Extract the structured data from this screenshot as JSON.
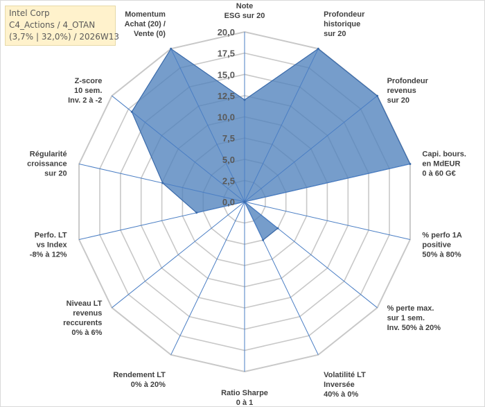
{
  "info": {
    "line1": "Intel Corp",
    "line2": "C4_Actions / 4_OTAN",
    "line3": "(3,7% | 32,0%) / 2026W13"
  },
  "chart_data": {
    "type": "radar",
    "rmax": 20,
    "ticks": [
      "0,0",
      "2,5",
      "5,0",
      "7,5",
      "10,0",
      "12,5",
      "15,0",
      "17,5",
      "20,0"
    ],
    "axes": [
      {
        "label": [
          "Note",
          "ESG sur 20"
        ],
        "value": 12.0
      },
      {
        "label": [
          "Profondeur",
          "historique",
          "sur 20"
        ],
        "value": 20.0
      },
      {
        "label": [
          "Profondeur",
          "revenus",
          "sur 20"
        ],
        "value": 20.0
      },
      {
        "label": [
          "Capi. bours.",
          "en MdEUR",
          "0 à 60 G€"
        ],
        "value": 20.0
      },
      {
        "label": [
          "% perfo 1A",
          "positive",
          "50% à 80%"
        ],
        "value": 0.0
      },
      {
        "label": [
          "% perte max.",
          "sur 1 sem.",
          "Inv. 50% à 20%"
        ],
        "value": 5.0
      },
      {
        "label": [
          "Volatilité LT",
          "Inversée",
          "40% à 0%"
        ],
        "value": 5.0
      },
      {
        "label": [
          "Ratio Sharpe",
          "0 à 1"
        ],
        "value": 0.0
      },
      {
        "label": [
          "Rendement LT",
          "0% à 20%"
        ],
        "value": 0.0
      },
      {
        "label": [
          "Niveau LT",
          "revenus",
          "reccurents",
          "0% à 6%"
        ],
        "value": 0.0
      },
      {
        "label": [
          "Perfo. LT",
          "vs Index",
          "-8% à 12%"
        ],
        "value": 5.8
      },
      {
        "label": [
          "Régularité",
          "croissance",
          "sur 20"
        ],
        "value": 9.9
      },
      {
        "label": [
          "Z-score",
          "10 sem.",
          "Inv. 2 à -2"
        ],
        "value": 17.0
      },
      {
        "label": [
          "Momentum",
          "Achat (20) /",
          "Vente (0)"
        ],
        "value": 20.0
      }
    ],
    "colors": {
      "fill": "#4f81bd",
      "line": "#3a6aaa",
      "grid": "#c8c8c8"
    }
  }
}
